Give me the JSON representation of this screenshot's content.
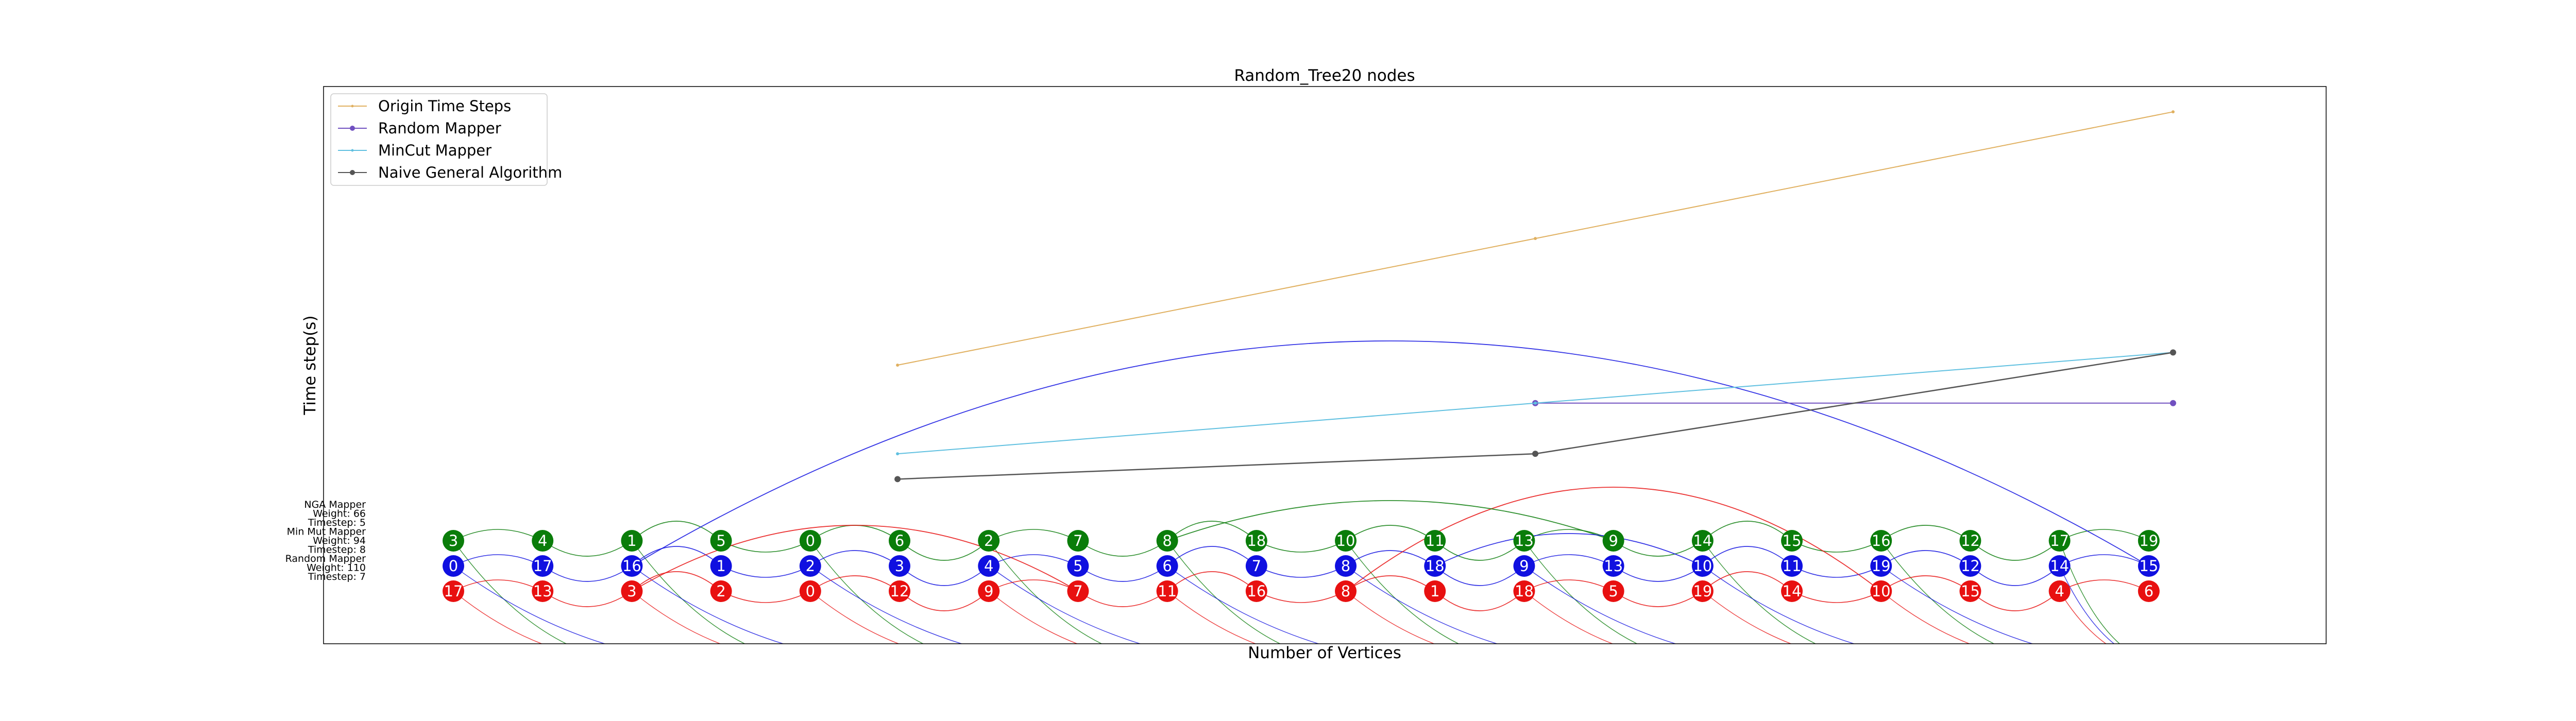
{
  "chart_data": {
    "type": "line",
    "title": "Random_Tree20 nodes",
    "xlabel": "Number of Vertices",
    "ylabel": "Time step(s)",
    "grid": false,
    "legend_position": "top-left",
    "series": [
      {
        "name": "Origin Time Steps",
        "color": "#e0b060",
        "marker": "point",
        "x": [
          5,
          10,
          15
        ],
        "y": [
          22,
          32,
          42
        ]
      },
      {
        "name": "Random Mapper",
        "color": "#7050c0",
        "marker": "circle",
        "x": [
          10,
          15
        ],
        "y": [
          19,
          19
        ]
      },
      {
        "name": "MinCut Mapper",
        "color": "#60c0e0",
        "marker": "point",
        "x": [
          5,
          10,
          15
        ],
        "y": [
          15,
          19,
          23
        ]
      },
      {
        "name": "Naive General Algorithm",
        "color": "#555555",
        "marker": "circle",
        "x": [
          5,
          10,
          15
        ],
        "y": [
          13,
          15,
          23
        ]
      }
    ],
    "xlim": [
      0.5,
      16.2
    ],
    "ylim": [
      0,
      44
    ],
    "side_labels": [
      {
        "text": "NGA Mapper",
        "color": "green"
      },
      {
        "text": "Weight: 66",
        "color": "green"
      },
      {
        "text": "Timestep: 5",
        "color": "green"
      },
      {
        "text": "Min Mut Mapper",
        "color": "blue"
      },
      {
        "text": "Weight: 94",
        "color": "blue"
      },
      {
        "text": "Timestep: 8",
        "color": "blue"
      },
      {
        "text": "Random Mapper",
        "color": "red"
      },
      {
        "text": "Weight: 110",
        "color": "red"
      },
      {
        "text": "Timestep: 7",
        "color": "red"
      }
    ],
    "node_rows": {
      "green": [
        3,
        4,
        1,
        5,
        0,
        6,
        2,
        7,
        8,
        18,
        10,
        11,
        13,
        9,
        14,
        15,
        16,
        12,
        17,
        19
      ],
      "blue": [
        0,
        17,
        16,
        1,
        2,
        3,
        4,
        5,
        6,
        7,
        8,
        18,
        9,
        13,
        10,
        11,
        19,
        12,
        14,
        15
      ],
      "red": [
        17,
        13,
        3,
        2,
        0,
        12,
        9,
        7,
        11,
        16,
        8,
        1,
        18,
        5,
        19,
        14,
        10,
        15,
        4,
        6
      ]
    },
    "colors": {
      "green": "#0a7d0a",
      "blue": "#1010e0",
      "red": "#e81010"
    }
  }
}
